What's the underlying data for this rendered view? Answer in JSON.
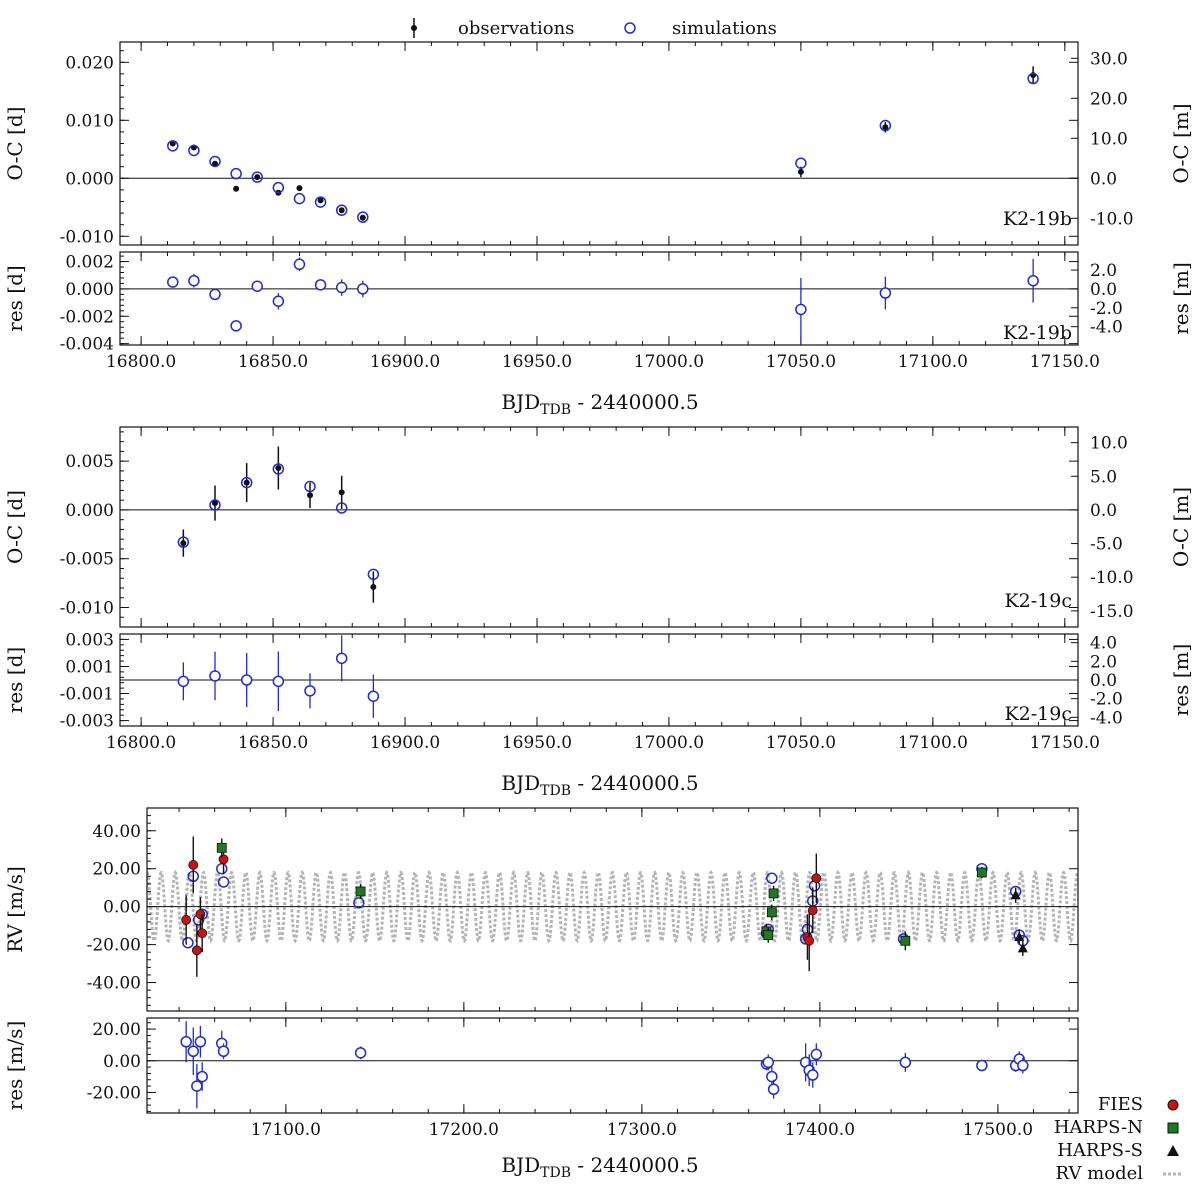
{
  "legend_top": {
    "observations": "observations",
    "simulations": "simulations"
  },
  "legend_bottom": {
    "fies": "FIES",
    "harps_n": "HARPS-N",
    "harps_s": "HARPS-S",
    "rv_model": "RV model"
  },
  "colors": {
    "observations": "#111111",
    "simulations": "#1f2bd6",
    "FIES": "#cc1111",
    "HARPS-N": "#1e7a1e",
    "HARPS-S": "#111111",
    "rv_model": "#b5b5b5"
  },
  "labels": {
    "oc_left": "O-C [d]",
    "oc_right": "O-C [m]",
    "res_left": "res [d]",
    "res_right": "res [m]",
    "rv_left": "RV [m/s]",
    "rvres_left": "res [m/s]",
    "xlabel_main": "BJD",
    "xlabel_sub": "TDB",
    "xlabel_rest": " - 2440000.5",
    "k2_19b": "K2-19b",
    "k2_19c": "K2-19c"
  },
  "chart_data": [
    {
      "id": "b_oc",
      "type": "scatter",
      "ylabel": "O-C [d]",
      "ylabel_right": "O-C [m]",
      "annotation": "K2-19b",
      "xlim": [
        16792,
        17155
      ],
      "ylim": [
        -0.0115,
        0.0235
      ],
      "yticks": [
        -0.01,
        0.0,
        0.01,
        0.02
      ],
      "ytick_labels": [
        "-0.010",
        "0.000",
        "0.010",
        "0.020"
      ],
      "yticks_right": [
        -10,
        0,
        10,
        20,
        30
      ],
      "ytick_right_labels": [
        "-10.0",
        "0.0",
        "10.0",
        "20.0",
        "30.0"
      ],
      "right_scale_m_per_unit": 1450,
      "zero_line": true,
      "observations": {
        "x": [
          16812,
          16820,
          16828,
          16836,
          16844,
          16852,
          16860,
          16868,
          16876,
          16884,
          17050,
          17082,
          17138
        ],
        "y": [
          0.006,
          0.0053,
          0.0025,
          -0.0018,
          0.0002,
          -0.0025,
          -0.0017,
          -0.0038,
          -0.0055,
          -0.0068,
          0.0011,
          0.0088,
          0.0178
        ],
        "err": [
          0.0003,
          0.0003,
          0.0003,
          0.0003,
          0.0003,
          0.0003,
          0.0003,
          0.0003,
          0.0003,
          0.0003,
          0.0009,
          0.0009,
          0.0015
        ]
      },
      "simulations": {
        "x": [
          16812,
          16820,
          16828,
          16836,
          16844,
          16852,
          16860,
          16868,
          16876,
          16884,
          17050,
          17082,
          17138
        ],
        "y": [
          0.0056,
          0.0048,
          0.0029,
          0.0008,
          0.0002,
          -0.0016,
          -0.0035,
          -0.0041,
          -0.0055,
          -0.0067,
          0.0026,
          0.0091,
          0.0172
        ]
      }
    },
    {
      "id": "b_res",
      "type": "scatter",
      "ylabel": "res [d]",
      "ylabel_right": "res [m]",
      "annotation": "K2-19b",
      "xlim": [
        16792,
        17155
      ],
      "ylim": [
        -0.0041,
        0.0027
      ],
      "yticks": [
        -0.004,
        -0.002,
        0.0,
        0.002
      ],
      "ytick_labels": [
        "-0.004",
        "-0.002",
        "0.000",
        "0.002"
      ],
      "yticks_right": [
        -4,
        -2,
        0,
        2
      ],
      "ytick_right_labels": [
        "-4.0",
        "-2.0",
        "0.0",
        "2.0"
      ],
      "right_scale_m_per_unit": 1450,
      "zero_line": true,
      "xticks": [
        16800,
        16850,
        16900,
        16950,
        17000,
        17050,
        17100,
        17150
      ],
      "xtick_labels": [
        "16800.0",
        "16850.0",
        "16900.0",
        "16950.0",
        "17000.0",
        "17050.0",
        "17100.0",
        "17150.0"
      ],
      "residuals": {
        "x": [
          16812,
          16820,
          16828,
          16836,
          16844,
          16852,
          16860,
          16868,
          16876,
          16884,
          17050,
          17082,
          17138
        ],
        "y": [
          0.0005,
          0.0006,
          -0.0004,
          -0.0027,
          0.0002,
          -0.0009,
          0.0018,
          0.0003,
          0.0001,
          0.0,
          -0.0015,
          -0.0003,
          0.0006
        ],
        "err": [
          0.0003,
          0.0005,
          0.0003,
          0.0004,
          0.0003,
          0.0006,
          0.0005,
          0.0003,
          0.0006,
          0.0006,
          0.0023,
          0.0012,
          0.0016
        ]
      }
    },
    {
      "id": "c_oc",
      "type": "scatter",
      "ylabel": "O-C [d]",
      "ylabel_right": "O-C [m]",
      "annotation": "K2-19c",
      "xlim": [
        16792,
        17155
      ],
      "ylim": [
        -0.012,
        0.0085
      ],
      "yticks": [
        -0.01,
        -0.005,
        0.0,
        0.005
      ],
      "ytick_labels": [
        "-0.010",
        "-0.005",
        "0.000",
        "0.005"
      ],
      "yticks_right": [
        -15,
        -10,
        -5,
        0,
        5,
        10
      ],
      "ytick_right_labels": [
        "-15.0",
        "-10.0",
        "-5.0",
        "0.0",
        "5.0",
        "10.0"
      ],
      "right_scale_m_per_unit": 1450,
      "zero_line": true,
      "observations": {
        "x": [
          16816,
          16828,
          16840,
          16852,
          16864,
          16876,
          16888
        ],
        "y": [
          -0.0034,
          0.0007,
          0.0028,
          0.0043,
          0.0015,
          0.0018,
          -0.0079
        ],
        "err": [
          0.0014,
          0.0018,
          0.002,
          0.0022,
          0.0013,
          0.0017,
          0.0016
        ]
      },
      "simulations": {
        "x": [
          16816,
          16828,
          16840,
          16852,
          16864,
          16876,
          16888
        ],
        "y": [
          -0.0033,
          0.0005,
          0.0028,
          0.0042,
          0.0024,
          0.0002,
          -0.0066
        ]
      }
    },
    {
      "id": "c_res",
      "type": "scatter",
      "ylabel": "res [d]",
      "ylabel_right": "res [m]",
      "annotation": "K2-19c",
      "xlim": [
        16792,
        17155
      ],
      "ylim": [
        -0.0034,
        0.0034
      ],
      "yticks": [
        -0.003,
        -0.001,
        0.001,
        0.003
      ],
      "ytick_labels": [
        "-0.003",
        "-0.001",
        "0.001",
        "0.003"
      ],
      "yticks_right": [
        -4,
        -2,
        0,
        2,
        4
      ],
      "ytick_right_labels": [
        "-4.0",
        "-2.0",
        "0.0",
        "2.0",
        "4.0"
      ],
      "right_scale_m_per_unit": 1450,
      "zero_line": true,
      "xticks": [
        16800,
        16850,
        16900,
        16950,
        17000,
        17050,
        17100,
        17150
      ],
      "xtick_labels": [
        "16800.0",
        "16850.0",
        "16900.0",
        "16950.0",
        "17000.0",
        "17050.0",
        "17100.0",
        "17150.0"
      ],
      "residuals": {
        "x": [
          16816,
          16828,
          16840,
          16852,
          16864,
          16876,
          16888
        ],
        "y": [
          -0.0001,
          0.0003,
          0.0,
          -0.0001,
          -0.0008,
          0.0016,
          -0.0012
        ],
        "err": [
          0.0014,
          0.0018,
          0.002,
          0.0022,
          0.0013,
          0.0017,
          0.0016
        ]
      }
    },
    {
      "id": "rv",
      "type": "scatter",
      "ylabel": "RV [m/s]",
      "xlim": [
        17022,
        17545
      ],
      "ylim": [
        -55,
        52
      ],
      "yticks": [
        -40,
        -20,
        0,
        20,
        40
      ],
      "ytick_labels": [
        "-40.00",
        "-20.00",
        "0.00",
        "20.00",
        "40.00"
      ],
      "zero_line": true,
      "model_period_days": 7.92,
      "model_amplitude": 18,
      "simulations": {
        "x": [
          17045,
          17048,
          17051,
          17053,
          17064,
          17065,
          17141,
          17370,
          17371,
          17373,
          17392,
          17393,
          17396,
          17397,
          17447,
          17491,
          17510,
          17512,
          17514
        ],
        "y": [
          -19,
          16,
          -7,
          -4,
          20,
          13,
          2,
          -14,
          -12,
          15,
          -17,
          -12,
          3,
          11,
          -17,
          20,
          8,
          -15,
          -18
        ]
      },
      "series": [
        {
          "name": "FIES",
          "marker": "circle",
          "x": [
            17044,
            17048,
            17050,
            17052,
            17053,
            17065,
            17393,
            17394,
            17396,
            17398
          ],
          "y": [
            -7,
            22,
            -23,
            -4,
            -14,
            25,
            -16,
            -18,
            -2,
            15
          ],
          "err": [
            13,
            15,
            14,
            9,
            10,
            8,
            12,
            16,
            12,
            13
          ]
        },
        {
          "name": "HARPS-N",
          "marker": "square",
          "x": [
            17064,
            17142,
            17370,
            17371,
            17373,
            17374,
            17448,
            17491
          ],
          "y": [
            31,
            8,
            -13,
            -15,
            -3,
            7,
            -18,
            18
          ],
          "err": [
            5,
            4,
            4,
            4,
            4,
            4,
            5,
            3
          ]
        },
        {
          "name": "HARPS-S",
          "marker": "triangle",
          "x": [
            17510,
            17512,
            17514
          ],
          "y": [
            6,
            -16,
            -22
          ],
          "err": [
            4,
            4,
            4
          ]
        }
      ]
    },
    {
      "id": "rv_res",
      "type": "scatter",
      "ylabel": "res [m/s]",
      "xlim": [
        17022,
        17545
      ],
      "ylim": [
        -33,
        27
      ],
      "yticks": [
        -20,
        0,
        20
      ],
      "ytick_labels": [
        "-20.00",
        "0.00",
        "20.00"
      ],
      "zero_line": true,
      "xticks": [
        17100,
        17200,
        17300,
        17400,
        17500
      ],
      "xtick_labels": [
        "17100.0",
        "17200.0",
        "17300.0",
        "17400.0",
        "17500.0"
      ],
      "residuals": {
        "x": [
          17044,
          17048,
          17050,
          17052,
          17053,
          17064,
          17065,
          17142,
          17370,
          17371,
          17373,
          17374,
          17392,
          17394,
          17396,
          17398,
          17448,
          17491,
          17510,
          17512,
          17514
        ],
        "y": [
          12,
          6,
          -16,
          12,
          -10,
          11,
          6,
          5,
          -2,
          -1,
          -10,
          -18,
          -1,
          -6,
          -9,
          4,
          -1,
          -3,
          -3,
          1,
          -3
        ],
        "err": [
          13,
          15,
          14,
          10,
          9,
          8,
          5,
          4,
          4,
          5,
          7,
          6,
          12,
          10,
          8,
          7,
          6,
          3,
          4,
          5,
          5
        ]
      }
    }
  ]
}
